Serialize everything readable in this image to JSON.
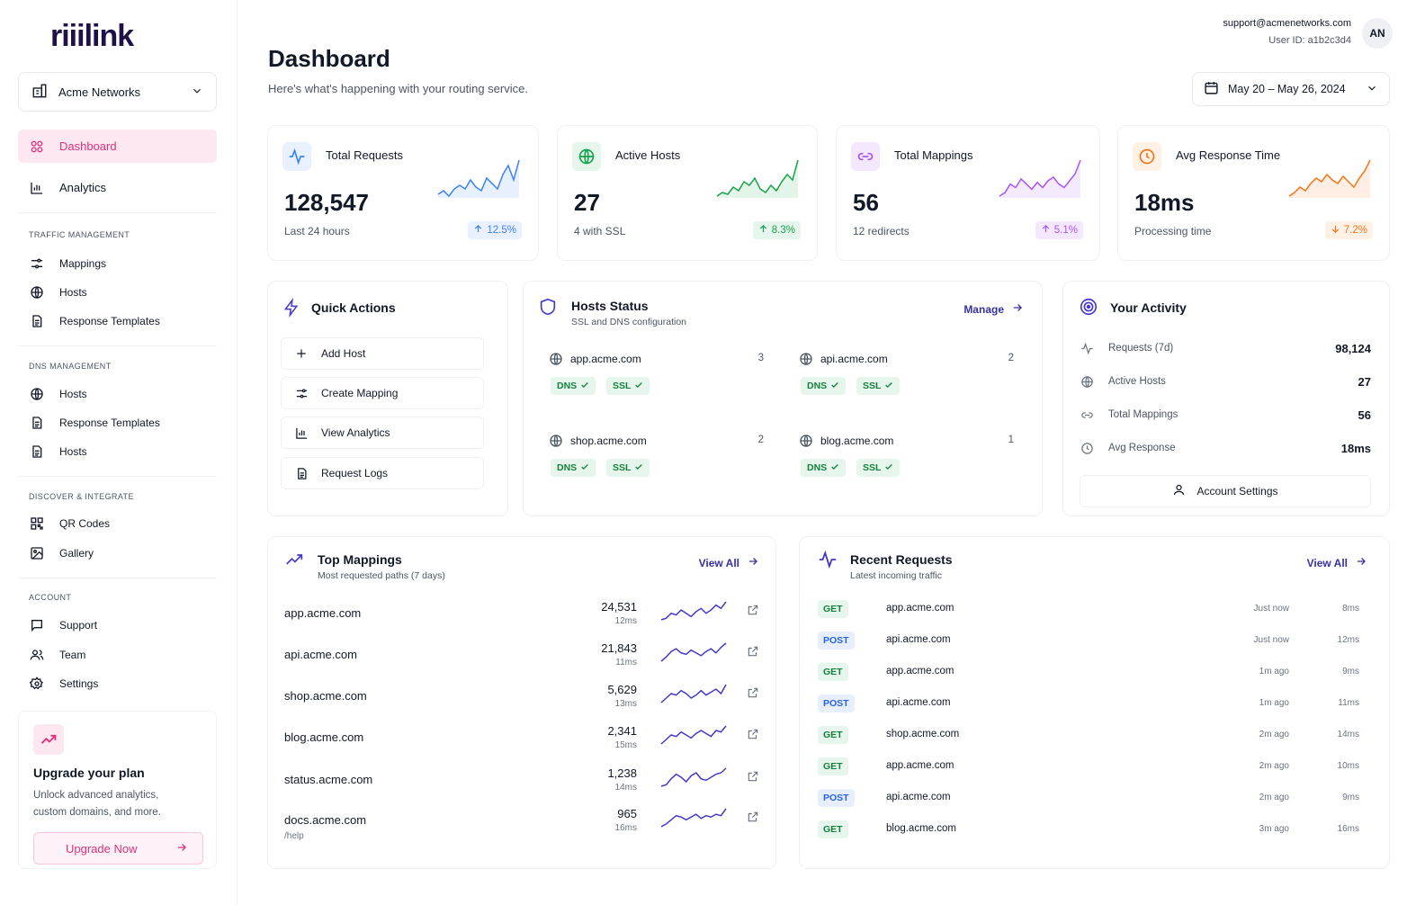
{
  "brand": {
    "logo_text": "riiilink"
  },
  "sidebar": {
    "org": "Acme Networks",
    "primary": [
      {
        "label": "Dashboard",
        "icon": "dashboard-icon",
        "active": true
      },
      {
        "label": "Analytics",
        "icon": "bar-chart-icon",
        "active": false
      }
    ],
    "sections": [
      {
        "title": "TRAFFIC MANAGEMENT",
        "items": [
          {
            "label": "Mappings",
            "icon": "mapping-icon"
          },
          {
            "label": "Hosts",
            "icon": "globe-icon"
          },
          {
            "label": "Response Templates",
            "icon": "document-icon"
          }
        ]
      },
      {
        "title": "DNS MANAGEMENT",
        "items": [
          {
            "label": "Hosts",
            "icon": "globe-icon"
          },
          {
            "label": "Response Templates",
            "icon": "document-icon"
          },
          {
            "label": "Hosts",
            "icon": "document-icon"
          }
        ]
      },
      {
        "title": "DISCOVER & INTEGRATE",
        "items": [
          {
            "label": "QR Codes",
            "icon": "qr-code-icon"
          },
          {
            "label": "Gallery",
            "icon": "image-icon"
          }
        ]
      },
      {
        "title": "ACCOUNT",
        "items": [
          {
            "label": "Support",
            "icon": "chat-icon"
          },
          {
            "label": "Team",
            "icon": "users-icon"
          },
          {
            "label": "Settings",
            "icon": "gear-icon"
          }
        ]
      }
    ],
    "upgrade": {
      "title": "Upgrade your plan",
      "desc_line1": "Unlock advanced analytics,",
      "desc_line2": "custom domains, and more.",
      "button": "Upgrade Now"
    }
  },
  "header": {
    "title": "Dashboard",
    "subtitle": "Here's what's happening with your routing service.",
    "email": "support@acmenetworks.com",
    "user_id": "User ID: a1b2c3d4",
    "avatar": "AN",
    "date_range": "May 20 – May 26, 2024"
  },
  "stats": [
    {
      "title": "Total Requests",
      "value": "128,547",
      "sub": "Last 24 hours",
      "trend": "12.5%",
      "direction": "up",
      "color": "#3b82f6",
      "trend_bg": "#eaf1fe",
      "icon_bg": "#eaf1fe",
      "icon": "activity-icon",
      "spark": [
        6,
        8,
        5,
        9,
        11,
        9,
        14,
        10,
        8,
        15,
        12,
        9,
        17,
        22,
        14,
        25
      ]
    },
    {
      "title": "Active Hosts",
      "value": "27",
      "sub": "4 with SSL",
      "trend": "8.3%",
      "direction": "up",
      "color": "#16a34a",
      "trend_bg": "#e6f6ec",
      "icon_bg": "#e6f6ec",
      "icon": "globe-icon",
      "spark": [
        4,
        6,
        5,
        9,
        7,
        12,
        10,
        14,
        8,
        6,
        10,
        7,
        12,
        16,
        13,
        24
      ]
    },
    {
      "title": "Total Mappings",
      "value": "56",
      "sub": "12 redirects",
      "trend": "5.1%",
      "direction": "up",
      "color": "#a855f7",
      "trend_bg": "#f3e8ff",
      "icon_bg": "#f3e8ff",
      "icon": "link-icon",
      "spark": [
        5,
        7,
        12,
        10,
        15,
        12,
        9,
        13,
        10,
        14,
        16,
        12,
        10,
        14,
        18,
        26
      ]
    },
    {
      "title": "Avg Response Time",
      "value": "18ms",
      "sub": "Processing time",
      "trend": "7.2%",
      "direction": "down",
      "color": "#f97316",
      "trend_bg": "#fff1e6",
      "icon_bg": "#fff1e6",
      "icon": "clock-icon",
      "spark": [
        4,
        6,
        9,
        7,
        11,
        14,
        12,
        16,
        13,
        11,
        15,
        12,
        9,
        14,
        18,
        24
      ]
    }
  ],
  "quick_actions": {
    "title": "Quick Actions",
    "items": [
      {
        "label": "Add Host",
        "icon": "plus-icon"
      },
      {
        "label": "Create Mapping",
        "icon": "mapping-icon"
      },
      {
        "label": "View Analytics",
        "icon": "bar-chart-icon"
      },
      {
        "label": "Request Logs",
        "icon": "document-icon"
      }
    ]
  },
  "hosts_status": {
    "title": "Hosts Status",
    "subtitle": "SSL and DNS configuration",
    "manage": "Manage",
    "hosts": [
      {
        "name": "app.acme.com",
        "count": "3",
        "dns": "DNS",
        "ssl": "SSL"
      },
      {
        "name": "api.acme.com",
        "count": "2",
        "dns": "DNS",
        "ssl": "SSL"
      },
      {
        "name": "shop.acme.com",
        "count": "2",
        "dns": "DNS",
        "ssl": "SSL"
      },
      {
        "name": "blog.acme.com",
        "count": "1",
        "dns": "DNS",
        "ssl": "SSL"
      }
    ]
  },
  "activity": {
    "title": "Your Activity",
    "rows": [
      {
        "label": "Requests (7d)",
        "value": "98,124",
        "icon": "activity-icon"
      },
      {
        "label": "Active Hosts",
        "value": "27",
        "icon": "globe-icon"
      },
      {
        "label": "Total Mappings",
        "value": "56",
        "icon": "link-icon"
      },
      {
        "label": "Avg Response",
        "value": "18ms",
        "icon": "clock-icon"
      }
    ],
    "button": "Account Settings"
  },
  "top_mappings": {
    "title": "Top Mappings",
    "subtitle": "Most requested paths (7 days)",
    "view_all": "View All",
    "rows": [
      {
        "host": "app.acme.com",
        "path": "",
        "count": "24,531",
        "ms": "12ms",
        "spark": [
          4,
          5,
          8,
          7,
          10,
          8,
          6,
          9,
          11,
          8,
          10,
          13,
          11,
          15
        ]
      },
      {
        "host": "api.acme.com",
        "path": "",
        "count": "21,843",
        "ms": "11ms",
        "spark": [
          3,
          6,
          10,
          12,
          9,
          8,
          11,
          9,
          7,
          10,
          12,
          9,
          13,
          16
        ]
      },
      {
        "host": "shop.acme.com",
        "path": "",
        "count": "5,629",
        "ms": "13ms",
        "spark": [
          4,
          7,
          10,
          9,
          12,
          10,
          7,
          9,
          12,
          9,
          11,
          13,
          10,
          16
        ]
      },
      {
        "host": "blog.acme.com",
        "path": "",
        "count": "2,341",
        "ms": "15ms",
        "spark": [
          3,
          6,
          9,
          8,
          11,
          9,
          7,
          10,
          12,
          10,
          8,
          12,
          11,
          15
        ]
      },
      {
        "host": "status.acme.com",
        "path": "",
        "count": "1,238",
        "ms": "14ms",
        "spark": [
          4,
          5,
          9,
          12,
          10,
          7,
          11,
          13,
          9,
          8,
          10,
          12,
          13,
          16
        ]
      },
      {
        "host": "docs.acme.com",
        "path": "/help",
        "count": "965",
        "ms": "16ms",
        "spark": [
          3,
          5,
          8,
          11,
          10,
          8,
          10,
          12,
          9,
          11,
          10,
          12,
          11,
          16
        ]
      }
    ]
  },
  "recent_requests": {
    "title": "Recent Requests",
    "subtitle": "Latest incoming traffic",
    "view_all": "View All",
    "rows": [
      {
        "method": "GET",
        "host": "app.acme.com",
        "time": "Just now",
        "ms": "8ms"
      },
      {
        "method": "POST",
        "host": "api.acme.com",
        "time": "Just now",
        "ms": "12ms"
      },
      {
        "method": "GET",
        "host": "app.acme.com",
        "time": "1m ago",
        "ms": "9ms"
      },
      {
        "method": "POST",
        "host": "api.acme.com",
        "time": "1m ago",
        "ms": "11ms"
      },
      {
        "method": "GET",
        "host": "shop.acme.com",
        "time": "2m ago",
        "ms": "14ms"
      },
      {
        "method": "GET",
        "host": "app.acme.com",
        "time": "2m ago",
        "ms": "10ms"
      },
      {
        "method": "POST",
        "host": "api.acme.com",
        "time": "2m ago",
        "ms": "9ms"
      },
      {
        "method": "GET",
        "host": "blog.acme.com",
        "time": "3m ago",
        "ms": "16ms"
      }
    ]
  }
}
